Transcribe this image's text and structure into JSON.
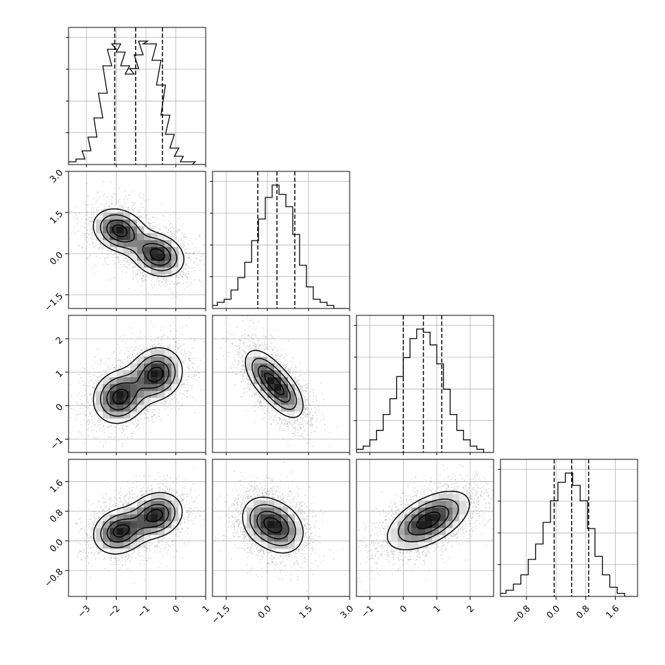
{
  "chart_data": {
    "type": "corner",
    "grid": true,
    "colors": {
      "line": "#000000",
      "grid": "#b0b0b0",
      "hist2d_dark": "#1a1a1a",
      "points": "#8c8c8c"
    },
    "variables": [
      {
        "ticks": [
          -3,
          -2,
          -1,
          0,
          1
        ],
        "tick_labels": [
          "−3",
          "−2",
          "−1",
          "0",
          "1"
        ],
        "range": [
          -3.6,
          1.0
        ]
      },
      {
        "ticks": [
          -1.5,
          0.0,
          1.5,
          3.0
        ],
        "tick_labels": [
          "−1.5",
          "0.0",
          "1.5",
          "3.0"
        ],
        "range": [
          -2.0,
          3.0
        ]
      },
      {
        "ticks": [
          -1,
          0,
          1,
          2
        ],
        "tick_labels": [
          "−1",
          "0",
          "1",
          "2"
        ],
        "range": [
          -1.4,
          2.7
        ]
      },
      {
        "ticks": [
          -0.8,
          0.0,
          0.8,
          1.6
        ],
        "tick_labels": [
          "−0.8",
          "0.0",
          "0.8",
          "1.6"
        ],
        "range": [
          -1.5,
          2.2
        ]
      }
    ],
    "quantiles": [
      [
        -2.05,
        -1.35,
        -0.45
      ],
      [
        -0.35,
        0.35,
        1.0
      ],
      [
        0.0,
        0.6,
        1.15
      ],
      [
        -0.05,
        0.42,
        0.88
      ]
    ],
    "histograms": [
      {
        "x": [
          -3.5,
          -3.2,
          -3.0,
          -2.8,
          -2.6,
          -2.45,
          -2.3,
          -2.15,
          -2.0,
          -1.85,
          -1.7,
          -1.55,
          -1.4,
          -1.25,
          -1.1,
          -0.95,
          -0.8,
          -0.65,
          -0.5,
          -0.35,
          -0.2,
          -0.05,
          0.1,
          0.3,
          0.5,
          0.7,
          0.9
        ],
        "counts": [
          1,
          2,
          5,
          10,
          17,
          26,
          36,
          42,
          44,
          41,
          36,
          33,
          35,
          40,
          45,
          44,
          44,
          38,
          29,
          18,
          11,
          6,
          3,
          1,
          1,
          0,
          0
        ]
      },
      {
        "x": [
          -1.95,
          -1.7,
          -1.45,
          -1.2,
          -0.95,
          -0.7,
          -0.45,
          -0.2,
          0.05,
          0.3,
          0.55,
          0.8,
          1.05,
          1.3,
          1.55,
          1.8,
          2.05,
          2.3,
          2.55,
          2.8
        ],
        "counts": [
          1,
          2,
          3,
          6,
          10,
          15,
          22,
          29,
          36,
          40,
          37,
          33,
          24,
          14,
          7,
          3,
          2,
          1,
          0,
          0
        ]
      },
      {
        "x": [
          -1.3,
          -1.1,
          -0.9,
          -0.7,
          -0.5,
          -0.3,
          -0.1,
          0.1,
          0.3,
          0.5,
          0.7,
          0.9,
          1.1,
          1.3,
          1.5,
          1.7,
          1.9,
          2.1,
          2.3,
          2.5
        ],
        "counts": [
          1,
          2,
          4,
          7,
          12,
          17,
          24,
          30,
          36,
          39,
          38,
          34,
          28,
          20,
          12,
          7,
          4,
          2,
          1,
          0
        ]
      },
      {
        "x": [
          -1.45,
          -1.25,
          -1.05,
          -0.85,
          -0.65,
          -0.45,
          -0.25,
          -0.05,
          0.15,
          0.35,
          0.55,
          0.75,
          0.95,
          1.15,
          1.35,
          1.55,
          1.75,
          1.95
        ],
        "counts": [
          1,
          2,
          4,
          7,
          12,
          17,
          24,
          31,
          37,
          40,
          36,
          31,
          22,
          13,
          7,
          3,
          1,
          0
        ]
      }
    ],
    "pairs": [
      {
        "x_var": 0,
        "y_var": 1,
        "centers": [
          [
            -1.9,
            0.85
          ],
          [
            -0.6,
            -0.05
          ]
        ],
        "spread": [
          [
            0.5,
            0.45,
            -0.2
          ],
          [
            0.5,
            0.45,
            -0.2
          ]
        ],
        "rho": -0.4
      },
      {
        "x_var": 0,
        "y_var": 2,
        "centers": [
          [
            -1.9,
            0.25
          ],
          [
            -0.65,
            0.95
          ]
        ],
        "spread": [
          [
            0.5,
            0.45,
            0.1
          ],
          [
            0.5,
            0.45,
            0.1
          ]
        ],
        "rho": 0.35
      },
      {
        "x_var": 1,
        "y_var": 2,
        "centers": [
          [
            -0.1,
            0.95
          ],
          [
            0.6,
            0.35
          ]
        ],
        "spread": [
          [
            0.45,
            0.45,
            -0.5
          ],
          [
            0.45,
            0.45,
            -0.5
          ]
        ],
        "rho": -0.6
      },
      {
        "x_var": 0,
        "y_var": 3,
        "centers": [
          [
            -1.9,
            0.25
          ],
          [
            -0.65,
            0.7
          ]
        ],
        "spread": [
          [
            0.5,
            0.35,
            0.15
          ],
          [
            0.5,
            0.35,
            0.15
          ]
        ],
        "rho": 0.3
      },
      {
        "x_var": 1,
        "y_var": 3,
        "centers": [
          [
            -0.15,
            0.55
          ],
          [
            0.55,
            0.3
          ]
        ],
        "spread": [
          [
            0.5,
            0.4,
            -0.15
          ],
          [
            0.5,
            0.4,
            -0.15
          ]
        ],
        "rho": -0.2
      },
      {
        "x_var": 2,
        "y_var": 3,
        "centers": [
          [
            0.75,
            0.55
          ]
        ],
        "spread": [
          [
            0.7,
            0.45,
            0.55
          ]
        ],
        "rho": 0.55
      }
    ]
  }
}
